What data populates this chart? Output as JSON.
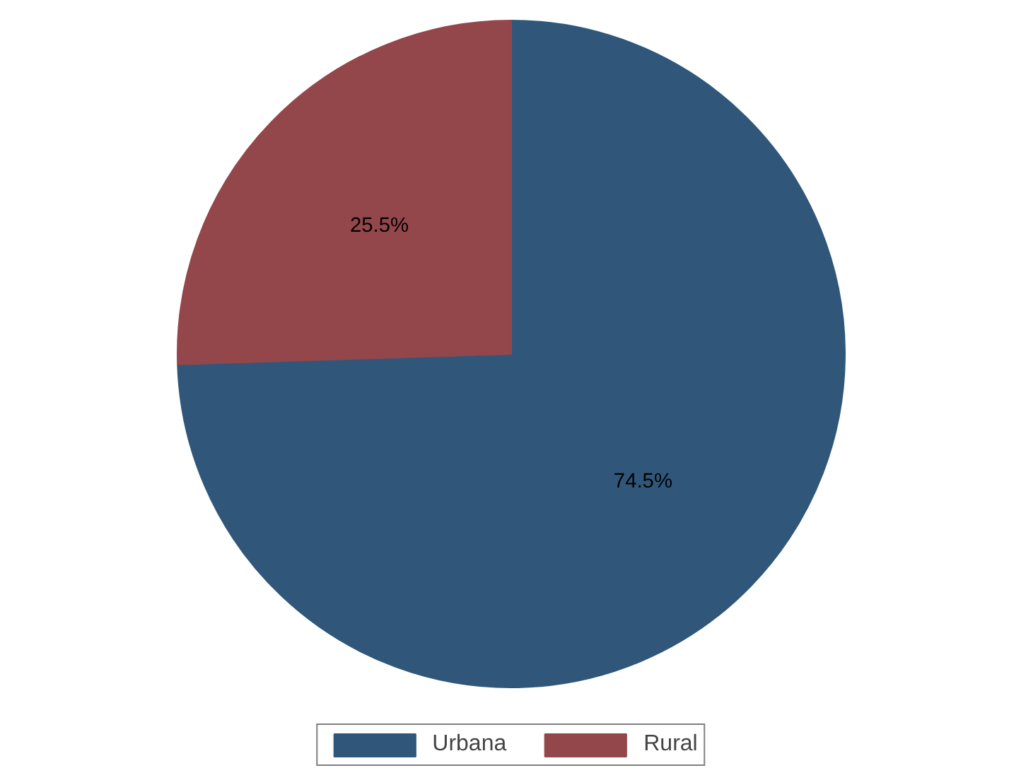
{
  "chart_data": {
    "type": "pie",
    "categories": [
      "Urbana",
      "Rural"
    ],
    "values": [
      74.5,
      25.5
    ],
    "colors": [
      "#30577a",
      "#94474b"
    ],
    "value_labels": [
      "74.5%",
      "25.5%"
    ],
    "legend": "bottom"
  }
}
